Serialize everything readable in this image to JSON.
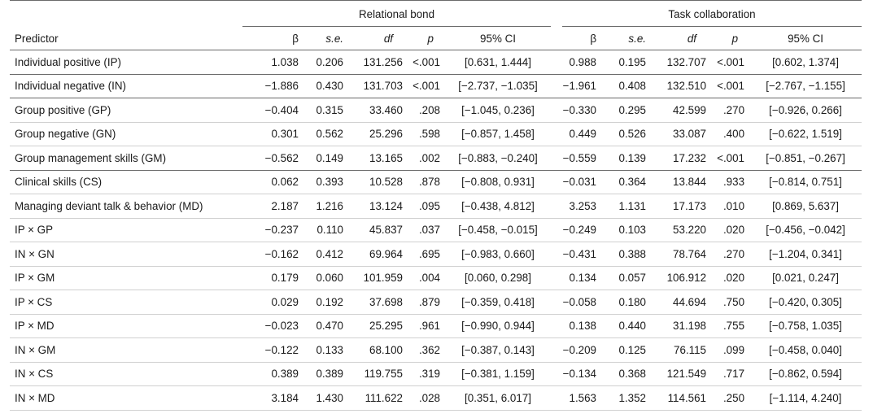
{
  "header": {
    "group1": "Relational bond",
    "group2": "Task collaboration",
    "predictor": "Predictor",
    "beta": "β",
    "se": "s.e.",
    "df": "df",
    "p": "p",
    "ci": "95% CI"
  },
  "rows": [
    {
      "predictor": "Individual positive (IP)",
      "b1": "1.038",
      "se1": "0.206",
      "df1": "131.256",
      "p1": "<.001",
      "ci1": "[0.631, 1.444]",
      "b2": "0.988",
      "se2": "0.195",
      "df2": "132.707",
      "p2": "<.001",
      "ci2": "[0.602, 1.374]"
    },
    {
      "predictor": "Individual negative (IN)",
      "b1": "−1.886",
      "se1": "0.430",
      "df1": "131.703",
      "p1": "<.001",
      "ci1": "[−2.737, −1.035]",
      "b2": "−1.961",
      "se2": "0.408",
      "df2": "132.510",
      "p2": "<.001",
      "ci2": "[−2.767, −1.155]"
    },
    {
      "predictor": "Group positive (GP)",
      "b1": "−0.404",
      "se1": "0.315",
      "df1": "33.460",
      "p1": ".208",
      "ci1": "[−1.045, 0.236]",
      "b2": "−0.330",
      "se2": "0.295",
      "df2": "42.599",
      "p2": ".270",
      "ci2": "[−0.926, 0.266]"
    },
    {
      "predictor": "Group negative (GN)",
      "b1": "0.301",
      "se1": "0.562",
      "df1": "25.296",
      "p1": ".598",
      "ci1": "[−0.857, 1.458]",
      "b2": "0.449",
      "se2": "0.526",
      "df2": "33.087",
      "p2": ".400",
      "ci2": "[−0.622, 1.519]"
    },
    {
      "predictor": "Group management skills (GM)",
      "b1": "−0.562",
      "se1": "0.149",
      "df1": "13.165",
      "p1": ".002",
      "ci1": "[−0.883, −0.240]",
      "b2": "−0.559",
      "se2": "0.139",
      "df2": "17.232",
      "p2": "<.001",
      "ci2": "[−0.851, −0.267]"
    },
    {
      "predictor": "Clinical skills (CS)",
      "b1": "0.062",
      "se1": "0.393",
      "df1": "10.528",
      "p1": ".878",
      "ci1": "[−0.808, 0.931]",
      "b2": "−0.031",
      "se2": "0.364",
      "df2": "13.844",
      "p2": ".933",
      "ci2": "[−0.814, 0.751]"
    },
    {
      "predictor": "Managing deviant talk & behavior (MD)",
      "b1": "2.187",
      "se1": "1.216",
      "df1": "13.124",
      "p1": ".095",
      "ci1": "[−0.438, 4.812]",
      "b2": "3.253",
      "se2": "1.131",
      "df2": "17.173",
      "p2": ".010",
      "ci2": "[0.869, 5.637]"
    },
    {
      "predictor": "IP × GP",
      "b1": "−0.237",
      "se1": "0.110",
      "df1": "45.837",
      "p1": ".037",
      "ci1": "[−0.458, −0.015]",
      "b2": "−0.249",
      "se2": "0.103",
      "df2": "53.220",
      "p2": ".020",
      "ci2": "[−0.456, −0.042]"
    },
    {
      "predictor": "IN × GN",
      "b1": "−0.162",
      "se1": "0.412",
      "df1": "69.964",
      "p1": ".695",
      "ci1": "[−0.983, 0.660]",
      "b2": "−0.431",
      "se2": "0.388",
      "df2": "78.764",
      "p2": ".270",
      "ci2": "[−1.204, 0.341]"
    },
    {
      "predictor": "IP × GM",
      "b1": "0.179",
      "se1": "0.060",
      "df1": "101.959",
      "p1": ".004",
      "ci1": "[0.060, 0.298]",
      "b2": "0.134",
      "se2": "0.057",
      "df2": "106.912",
      "p2": ".020",
      "ci2": "[0.021, 0.247]"
    },
    {
      "predictor": "IP × CS",
      "b1": "0.029",
      "se1": "0.192",
      "df1": "37.698",
      "p1": ".879",
      "ci1": "[−0.359, 0.418]",
      "b2": "−0.058",
      "se2": "0.180",
      "df2": "44.694",
      "p2": ".750",
      "ci2": "[−0.420, 0.305]"
    },
    {
      "predictor": "IP × MD",
      "b1": "−0.023",
      "se1": "0.470",
      "df1": "25.295",
      "p1": ".961",
      "ci1": "[−0.990, 0.944]",
      "b2": "0.138",
      "se2": "0.440",
      "df2": "31.198",
      "p2": ".755",
      "ci2": "[−0.758, 1.035]"
    },
    {
      "predictor": "IN × GM",
      "b1": "−0.122",
      "se1": "0.133",
      "df1": "68.100",
      "p1": ".362",
      "ci1": "[−0.387, 0.143]",
      "b2": "−0.209",
      "se2": "0.125",
      "df2": "76.115",
      "p2": ".099",
      "ci2": "[−0.458, 0.040]"
    },
    {
      "predictor": "IN × CS",
      "b1": "0.389",
      "se1": "0.389",
      "df1": "119.755",
      "p1": ".319",
      "ci1": "[−0.381, 1.159]",
      "b2": "−0.134",
      "se2": "0.368",
      "df2": "121.549",
      "p2": ".717",
      "ci2": "[−0.862, 0.594]"
    },
    {
      "predictor": "IN × MD",
      "b1": "3.184",
      "se1": "1.430",
      "df1": "111.622",
      "p1": ".028",
      "ci1": "[0.351, 6.017]",
      "b2": "1.563",
      "se2": "1.352",
      "df2": "114.561",
      "p2": ".250",
      "ci2": "[−1.114, 4.240]"
    }
  ]
}
